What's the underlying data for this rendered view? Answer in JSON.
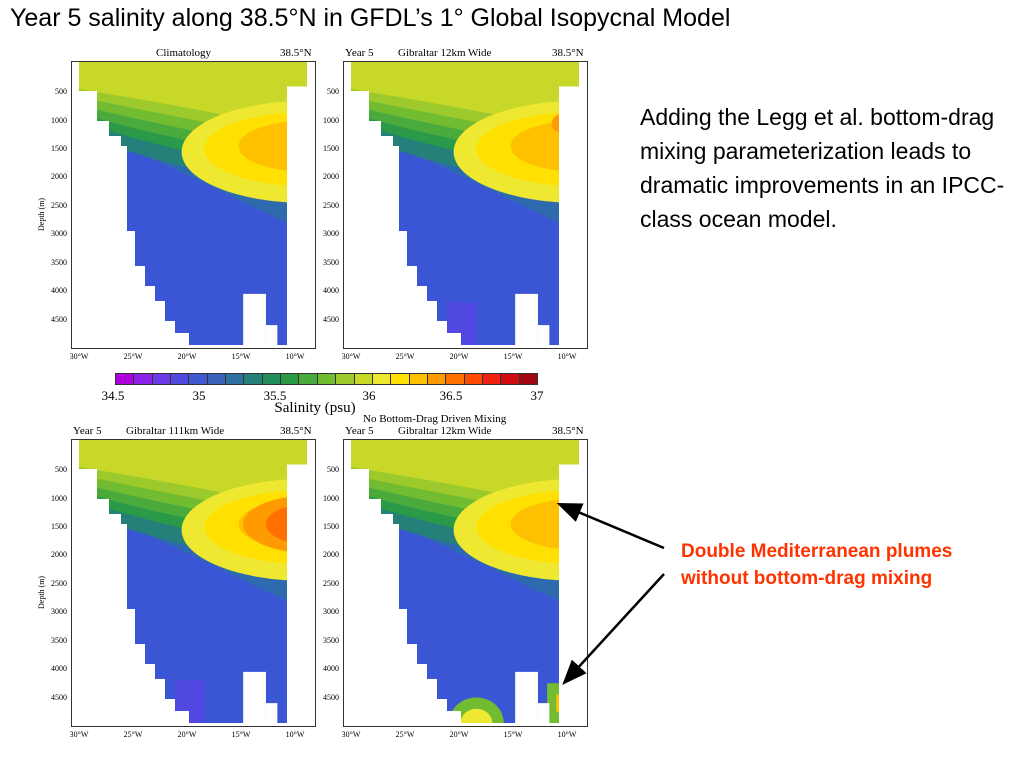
{
  "title": "Year 5 salinity along 38.5°N in GFDL’s 1° Global Isopycnal Model",
  "panels": [
    {
      "left": "",
      "center": "Climatology",
      "right": "38.5°N",
      "label2": ""
    },
    {
      "left": "Year 5",
      "center": "Gibraltar 12km Wide",
      "right": "38.5°N",
      "label2": ""
    },
    {
      "left": "Year 5",
      "center": "Gibraltar 111km Wide",
      "right": "38.5°N",
      "label2": ""
    },
    {
      "left": "Year 5",
      "center": "Gibraltar 12km Wide",
      "right": "38.5°N",
      "label2": "No Bottom-Drag Driven Mixing"
    }
  ],
  "y_axis": {
    "label": "Depth (m)",
    "ticks": [
      "500",
      "1000",
      "1500",
      "2000",
      "2500",
      "3000",
      "3500",
      "4000",
      "4500"
    ]
  },
  "x_axis": {
    "ticks": [
      "30°W",
      "25°W",
      "20°W",
      "15°W",
      "10°W"
    ]
  },
  "colorbar": {
    "label": "Salinity (psu)",
    "ticks": [
      "34.5",
      "35",
      "35.5",
      "36",
      "36.5",
      "37"
    ],
    "colors": [
      "#b000e0",
      "#8c20e8",
      "#6a3ae8",
      "#5048e0",
      "#4058d0",
      "#3a62b8",
      "#2e70a0",
      "#25807a",
      "#1f8c5a",
      "#2a9a48",
      "#4aab3c",
      "#72bc32",
      "#9cca2c",
      "#c8d828",
      "#eee830",
      "#ffe000",
      "#ffc000",
      "#ff9a00",
      "#ff7000",
      "#ff4800",
      "#f02010",
      "#d00a10",
      "#a00510"
    ]
  },
  "body_text": "Adding the Legg et al. bottom-drag mixing parameterization leads to dramatic improvements in an IPCC-class ocean model.",
  "annotation": "Double Mediterranean plumes without bottom-drag mixing",
  "colors": {
    "deep_blue": "#3a56d4",
    "mid_blue": "#2e6aae",
    "annotation_red": "#ff3300"
  }
}
